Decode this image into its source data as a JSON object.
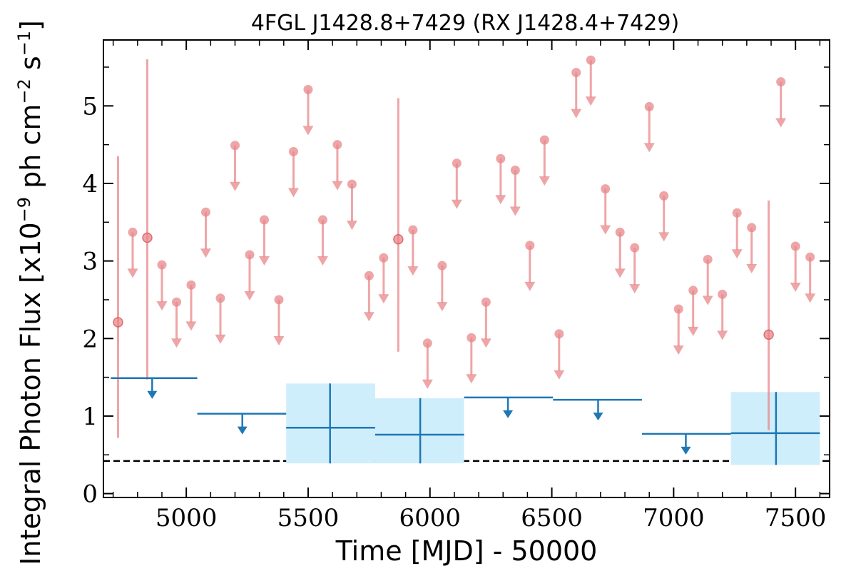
{
  "chart_data": {
    "type": "scatter",
    "title": "4FGL J1428.8+7429 (RX J1428.4+7429)",
    "xlabel": "Time [MJD] - 50000",
    "ylabel": "Integral Photon Flux [x10",
    "ylabel_exponent": "−9",
    "ylabel_unit_mid": " ph cm",
    "ylabel_unit_exp1": "−2",
    "ylabel_unit_s": " s",
    "ylabel_unit_exp2": "−1",
    "ylabel_close": "]",
    "xlim": [
      4660,
      7640
    ],
    "ylim": [
      -0.05,
      5.85
    ],
    "x_ticks": [
      5000,
      5500,
      6000,
      6500,
      7000,
      7500
    ],
    "x_tick_labels": [
      "5000",
      "5500",
      "6000",
      "6500",
      "7000",
      "7500"
    ],
    "y_ticks": [
      0,
      1,
      2,
      3,
      4,
      5
    ],
    "y_tick_labels": [
      "0",
      "1",
      "2",
      "3",
      "4",
      "5"
    ],
    "x_minor_step": 100,
    "y_minor_step": 0.5,
    "baseline": 0.42,
    "colors": {
      "fine": "#e8878a",
      "coarse": "#1f77b4",
      "coarse_band": "#cfeefb",
      "baseline": "#000000"
    },
    "fine_bin_detections": [
      {
        "x": 4720,
        "y": 2.21,
        "lo": 0.72,
        "hi": 4.35
      },
      {
        "x": 4840,
        "y": 3.3,
        "lo": 1.47,
        "hi": 5.6
      },
      {
        "x": 5870,
        "y": 3.28,
        "lo": 1.83,
        "hi": 5.1
      },
      {
        "x": 7390,
        "y": 2.05,
        "lo": 0.82,
        "hi": 3.78
      }
    ],
    "fine_bin_upper_limits": [
      {
        "x": 4780,
        "y": 3.37
      },
      {
        "x": 4900,
        "y": 2.95
      },
      {
        "x": 4960,
        "y": 2.47
      },
      {
        "x": 5020,
        "y": 2.69
      },
      {
        "x": 5080,
        "y": 3.63
      },
      {
        "x": 5140,
        "y": 2.52
      },
      {
        "x": 5200,
        "y": 4.49
      },
      {
        "x": 5260,
        "y": 3.08
      },
      {
        "x": 5320,
        "y": 3.53
      },
      {
        "x": 5380,
        "y": 2.5
      },
      {
        "x": 5440,
        "y": 4.41
      },
      {
        "x": 5500,
        "y": 5.21
      },
      {
        "x": 5560,
        "y": 3.53
      },
      {
        "x": 5620,
        "y": 4.5
      },
      {
        "x": 5680,
        "y": 3.99
      },
      {
        "x": 5750,
        "y": 2.81
      },
      {
        "x": 5810,
        "y": 3.04
      },
      {
        "x": 5930,
        "y": 3.4
      },
      {
        "x": 5990,
        "y": 1.94
      },
      {
        "x": 6050,
        "y": 2.94
      },
      {
        "x": 6110,
        "y": 4.26
      },
      {
        "x": 6170,
        "y": 2.01
      },
      {
        "x": 6230,
        "y": 2.47
      },
      {
        "x": 6290,
        "y": 4.32
      },
      {
        "x": 6350,
        "y": 4.17
      },
      {
        "x": 6410,
        "y": 3.2
      },
      {
        "x": 6470,
        "y": 4.56
      },
      {
        "x": 6530,
        "y": 2.06
      },
      {
        "x": 6600,
        "y": 5.43
      },
      {
        "x": 6660,
        "y": 5.59
      },
      {
        "x": 6720,
        "y": 3.93
      },
      {
        "x": 6780,
        "y": 3.37
      },
      {
        "x": 6840,
        "y": 3.17
      },
      {
        "x": 6900,
        "y": 4.99
      },
      {
        "x": 6960,
        "y": 3.84
      },
      {
        "x": 7020,
        "y": 2.38
      },
      {
        "x": 7080,
        "y": 2.62
      },
      {
        "x": 7140,
        "y": 3.02
      },
      {
        "x": 7200,
        "y": 2.57
      },
      {
        "x": 7260,
        "y": 3.62
      },
      {
        "x": 7320,
        "y": 3.43
      },
      {
        "x": 7440,
        "y": 5.31
      },
      {
        "x": 7500,
        "y": 3.19
      },
      {
        "x": 7560,
        "y": 3.05
      }
    ],
    "coarse_bin_detections": [
      {
        "x": 5590,
        "xlo": 5410,
        "xhi": 5775,
        "y": 0.85,
        "lo": 0.39,
        "hi": 1.42
      },
      {
        "x": 5960,
        "xlo": 5775,
        "xhi": 6140,
        "y": 0.76,
        "lo": 0.39,
        "hi": 1.23
      },
      {
        "x": 7420,
        "xlo": 7235,
        "xhi": 7600,
        "y": 0.78,
        "lo": 0.37,
        "hi": 1.31
      }
    ],
    "coarse_bin_upper_limits": [
      {
        "x": 4860,
        "xlo": 4690,
        "xhi": 5045,
        "y": 1.49
      },
      {
        "x": 5230,
        "xlo": 5045,
        "xhi": 5410,
        "y": 1.03
      },
      {
        "x": 6320,
        "xlo": 6140,
        "xhi": 6505,
        "y": 1.24
      },
      {
        "x": 6690,
        "xlo": 6505,
        "xhi": 6870,
        "y": 1.21
      },
      {
        "x": 7050,
        "xlo": 6870,
        "xhi": 7235,
        "y": 0.77
      }
    ]
  }
}
